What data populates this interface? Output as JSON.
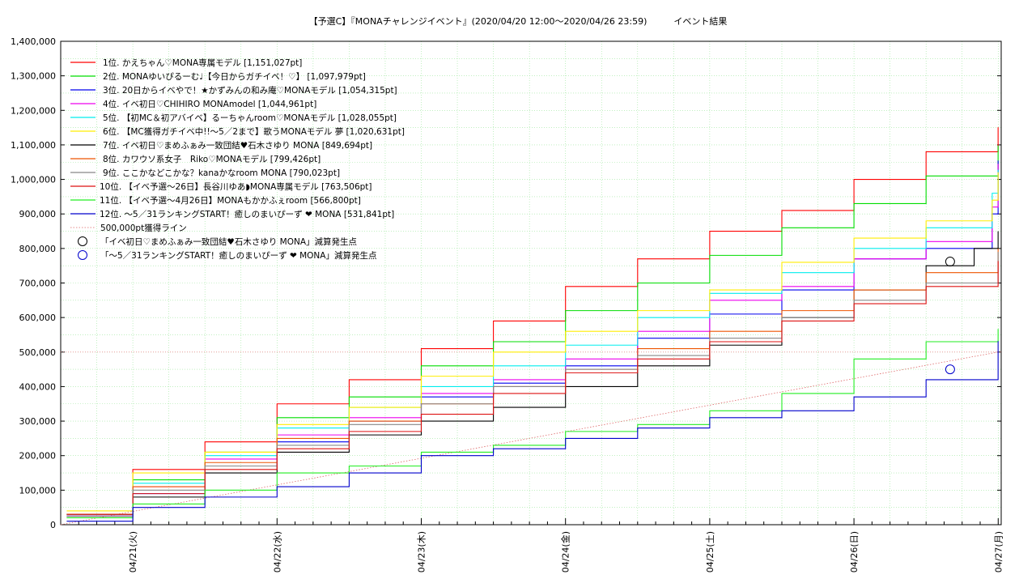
{
  "chart_data": {
    "type": "line",
    "title": "【予選C】『MONAチャレンジイベント』(2020/04/20 12:00〜2020/04/26 23:59)　　　イベント結果",
    "xlabel": "",
    "ylabel": "",
    "x_axis": "time",
    "xlim": [
      "2020-04-20 12:00",
      "2020-04-27 00:30"
    ],
    "ylim": [
      0,
      1400000
    ],
    "yticks": [
      "0",
      "100,000",
      "200,000",
      "300,000",
      "400,000",
      "500,000",
      "600,000",
      "700,000",
      "800,000",
      "900,000",
      "1,000,000",
      "1,100,000",
      "1,200,000",
      "1,300,000",
      "1,400,000"
    ],
    "xticks": [
      "04/21(火)",
      "04/22(水)",
      "04/23(木)",
      "04/24(金)",
      "04/25(土)",
      "04/26(日)",
      "04/27(月)"
    ],
    "grid": true,
    "legend_position": "top-left",
    "series": [
      {
        "name": "1位. かえちゃん♡MONA専属モデル [1,151,027pt]",
        "color": "#ff0000",
        "x": [
          "2020-04-20 13:00",
          "2020-04-21 00:00",
          "2020-04-21 12:00",
          "2020-04-22 00:00",
          "2020-04-22 12:00",
          "2020-04-23 00:00",
          "2020-04-23 12:00",
          "2020-04-24 00:00",
          "2020-04-24 12:00",
          "2020-04-25 00:00",
          "2020-04-25 12:00",
          "2020-04-26 00:00",
          "2020-04-26 12:00",
          "2020-04-26 23:59"
        ],
        "y": [
          30000,
          160000,
          240000,
          350000,
          420000,
          510000,
          590000,
          690000,
          770000,
          850000,
          910000,
          1000000,
          1080000,
          1151027
        ]
      },
      {
        "name": "2位. MONAゆいぴるーむ♩【今日からガチイベ！♡】 [1,097,979pt]",
        "color": "#00dd00",
        "x": [
          "2020-04-20 13:00",
          "2020-04-21 00:00",
          "2020-04-21 12:00",
          "2020-04-22 00:00",
          "2020-04-22 12:00",
          "2020-04-23 00:00",
          "2020-04-23 12:00",
          "2020-04-24 00:00",
          "2020-04-24 12:00",
          "2020-04-25 00:00",
          "2020-04-25 12:00",
          "2020-04-26 00:00",
          "2020-04-26 12:00",
          "2020-04-26 23:59"
        ],
        "y": [
          30000,
          130000,
          210000,
          310000,
          370000,
          460000,
          530000,
          620000,
          700000,
          780000,
          860000,
          930000,
          1010000,
          1097979
        ]
      },
      {
        "name": "3位. 20日からイベやで！★かずみんの和み庵♡MONAモデル [1,054,315pt]",
        "color": "#0000ee",
        "x": [
          "2020-04-20 13:00",
          "2020-04-21 00:00",
          "2020-04-21 12:00",
          "2020-04-22 00:00",
          "2020-04-22 12:00",
          "2020-04-23 00:00",
          "2020-04-23 12:00",
          "2020-04-24 00:00",
          "2020-04-24 12:00",
          "2020-04-25 00:00",
          "2020-04-25 12:00",
          "2020-04-26 00:00",
          "2020-04-26 12:00",
          "2020-04-26 23:00",
          "2020-04-26 23:59"
        ],
        "y": [
          25000,
          90000,
          170000,
          240000,
          300000,
          370000,
          410000,
          460000,
          540000,
          610000,
          680000,
          770000,
          800000,
          900000,
          1054315
        ]
      },
      {
        "name": "4位. イベ初日♡CHIHIRO MONAmodel [1,044,961pt]",
        "color": "#ee00ee",
        "x": [
          "2020-04-20 13:00",
          "2020-04-21 00:00",
          "2020-04-21 12:00",
          "2020-04-22 00:00",
          "2020-04-22 12:00",
          "2020-04-23 00:00",
          "2020-04-23 12:00",
          "2020-04-24 00:00",
          "2020-04-24 12:00",
          "2020-04-25 00:00",
          "2020-04-25 12:00",
          "2020-04-26 00:00",
          "2020-04-26 12:00",
          "2020-04-26 23:00",
          "2020-04-26 23:59"
        ],
        "y": [
          25000,
          110000,
          190000,
          260000,
          310000,
          380000,
          420000,
          480000,
          560000,
          650000,
          690000,
          770000,
          820000,
          920000,
          1044961
        ]
      },
      {
        "name": "5位. 【初MC＆初アバイベ】るーちゃんroom♡MONAモデル [1,028,055pt]",
        "color": "#00eeee",
        "x": [
          "2020-04-20 13:00",
          "2020-04-21 00:00",
          "2020-04-21 12:00",
          "2020-04-22 00:00",
          "2020-04-22 12:00",
          "2020-04-23 00:00",
          "2020-04-23 12:00",
          "2020-04-24 00:00",
          "2020-04-24 12:00",
          "2020-04-25 00:00",
          "2020-04-25 12:00",
          "2020-04-26 00:00",
          "2020-04-26 12:00",
          "2020-04-26 23:00",
          "2020-04-26 23:59"
        ],
        "y": [
          30000,
          120000,
          200000,
          280000,
          340000,
          400000,
          460000,
          520000,
          600000,
          670000,
          730000,
          800000,
          860000,
          960000,
          1028055
        ]
      },
      {
        "name": "6位. 【MC獲得ガチイベ中!!〜5／2まで】歌うMONAモデル 夢 [1,020,631pt]",
        "color": "#ffee00",
        "x": [
          "2020-04-20 13:00",
          "2020-04-21 00:00",
          "2020-04-21 12:00",
          "2020-04-22 00:00",
          "2020-04-22 12:00",
          "2020-04-23 00:00",
          "2020-04-23 12:00",
          "2020-04-24 00:00",
          "2020-04-24 12:00",
          "2020-04-25 00:00",
          "2020-04-25 12:00",
          "2020-04-26 00:00",
          "2020-04-26 12:00",
          "2020-04-26 23:00",
          "2020-04-26 23:59"
        ],
        "y": [
          40000,
          150000,
          210000,
          290000,
          340000,
          430000,
          500000,
          560000,
          620000,
          680000,
          760000,
          830000,
          880000,
          940000,
          1020631
        ]
      },
      {
        "name": "7位. イベ初日♡まめふぁみ一致団結♥石木さゆり MONA [849,694pt]",
        "color": "#000000",
        "x": [
          "2020-04-20 13:00",
          "2020-04-21 00:00",
          "2020-04-21 12:00",
          "2020-04-22 00:00",
          "2020-04-22 12:00",
          "2020-04-23 00:00",
          "2020-04-23 12:00",
          "2020-04-24 00:00",
          "2020-04-24 12:00",
          "2020-04-25 00:00",
          "2020-04-25 12:00",
          "2020-04-26 00:00",
          "2020-04-26 12:00",
          "2020-04-26 20:00",
          "2020-04-26 23:59"
        ],
        "y": [
          20000,
          80000,
          150000,
          210000,
          260000,
          300000,
          340000,
          400000,
          460000,
          520000,
          600000,
          680000,
          750000,
          800000,
          849694
        ]
      },
      {
        "name": "8位. カワウソ系女子　Riko♡MONAモデル [799,426pt]",
        "color": "#ee5500",
        "x": [
          "2020-04-20 13:00",
          "2020-04-21 00:00",
          "2020-04-21 12:00",
          "2020-04-22 00:00",
          "2020-04-22 12:00",
          "2020-04-23 00:00",
          "2020-04-23 12:00",
          "2020-04-24 00:00",
          "2020-04-24 12:00",
          "2020-04-25 00:00",
          "2020-04-25 12:00",
          "2020-04-26 00:00",
          "2020-04-26 12:00",
          "2020-04-26 23:59"
        ],
        "y": [
          30000,
          110000,
          180000,
          250000,
          300000,
          350000,
          400000,
          450000,
          510000,
          560000,
          620000,
          680000,
          730000,
          799426
        ]
      },
      {
        "name": "9位. ここかなどこかな？kanaかなroom MONA [790,023pt]",
        "color": "#888888",
        "x": [
          "2020-04-20 13:00",
          "2020-04-21 00:00",
          "2020-04-21 12:00",
          "2020-04-22 00:00",
          "2020-04-22 12:00",
          "2020-04-23 00:00",
          "2020-04-23 12:00",
          "2020-04-24 00:00",
          "2020-04-24 12:00",
          "2020-04-25 00:00",
          "2020-04-25 12:00",
          "2020-04-26 00:00",
          "2020-04-26 12:00",
          "2020-04-26 23:59"
        ],
        "y": [
          25000,
          100000,
          170000,
          230000,
          290000,
          350000,
          400000,
          450000,
          490000,
          540000,
          600000,
          650000,
          700000,
          790023
        ]
      },
      {
        "name": "10位. 【イベ予選〜26日】長谷川ゆあ◗MONA専属モデル [763,506pt]",
        "color": "#dd1111",
        "x": [
          "2020-04-20 13:00",
          "2020-04-21 00:00",
          "2020-04-21 12:00",
          "2020-04-22 00:00",
          "2020-04-22 12:00",
          "2020-04-23 00:00",
          "2020-04-23 12:00",
          "2020-04-24 00:00",
          "2020-04-24 12:00",
          "2020-04-25 00:00",
          "2020-04-25 12:00",
          "2020-04-26 00:00",
          "2020-04-26 12:00",
          "2020-04-26 23:59"
        ],
        "y": [
          30000,
          90000,
          160000,
          220000,
          270000,
          320000,
          380000,
          440000,
          480000,
          530000,
          590000,
          640000,
          690000,
          763506
        ]
      },
      {
        "name": "11位. 【イベ予選〜4月26日】MONAもかかふぇroom [566,800pt]",
        "color": "#22ee22",
        "x": [
          "2020-04-20 13:00",
          "2020-04-21 00:00",
          "2020-04-21 12:00",
          "2020-04-22 00:00",
          "2020-04-22 12:00",
          "2020-04-23 00:00",
          "2020-04-23 12:00",
          "2020-04-24 00:00",
          "2020-04-24 12:00",
          "2020-04-25 00:00",
          "2020-04-25 12:00",
          "2020-04-26 00:00",
          "2020-04-26 12:00",
          "2020-04-26 23:59"
        ],
        "y": [
          20000,
          60000,
          100000,
          150000,
          170000,
          210000,
          230000,
          270000,
          290000,
          330000,
          380000,
          480000,
          530000,
          566800
        ]
      },
      {
        "name": "12位. 〜5／31ランキングSTART！癒しのまいぴーず ❤ MONA [531,841pt]",
        "color": "#0000cc",
        "x": [
          "2020-04-20 13:00",
          "2020-04-21 00:00",
          "2020-04-21 12:00",
          "2020-04-22 00:00",
          "2020-04-22 12:00",
          "2020-04-23 00:00",
          "2020-04-23 12:00",
          "2020-04-24 00:00",
          "2020-04-24 12:00",
          "2020-04-25 00:00",
          "2020-04-25 12:00",
          "2020-04-26 00:00",
          "2020-04-26 12:00",
          "2020-04-26 23:59"
        ],
        "y": [
          10000,
          50000,
          80000,
          110000,
          150000,
          200000,
          220000,
          250000,
          280000,
          310000,
          330000,
          370000,
          420000,
          531841
        ]
      }
    ],
    "reference_line": {
      "name": "500,000pt獲得ライン",
      "color": "#dd6666",
      "x": [
        "2020-04-20 12:00",
        "2020-04-26 23:59"
      ],
      "y": [
        0,
        500000
      ]
    },
    "markers": [
      {
        "name": "「イベ初日♡まめふぁみ一致団結♥石木さゆり MONA」減算発生点",
        "color": "#000000",
        "x": "2020-04-26 16:00",
        "y": 762000
      },
      {
        "name": "「〜5／31ランキングSTART！癒しのまいぴーず ❤ MONA」減算発生点",
        "color": "#0000cc",
        "x": "2020-04-26 16:00",
        "y": 450000
      }
    ]
  }
}
